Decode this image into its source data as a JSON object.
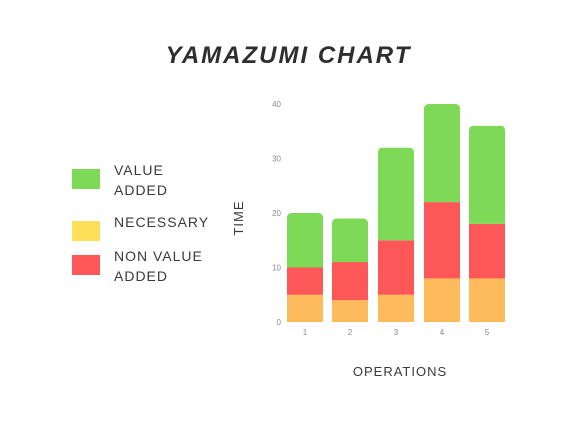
{
  "chart_data": {
    "type": "bar",
    "stacked": true,
    "title": "YAMAZUMI CHART",
    "xlabel": "OPERATIONS",
    "ylabel": "TIME",
    "categories": [
      "1",
      "2",
      "3",
      "4",
      "5"
    ],
    "yticks": [
      "0",
      "10",
      "20",
      "30",
      "40"
    ],
    "ylim": [
      0,
      40
    ],
    "series": [
      {
        "name": "NECESSARY",
        "color": "#fdbb5c",
        "values": [
          5,
          4,
          5,
          8,
          8
        ]
      },
      {
        "name": "NON VALUE ADDED",
        "color": "#fe5757",
        "values": [
          5,
          7,
          10,
          14,
          10
        ]
      },
      {
        "name": "VALUE ADDED",
        "color": "#7ed957",
        "values": [
          10,
          8,
          17,
          18,
          18
        ]
      }
    ],
    "grid": false,
    "legend_position": "left"
  },
  "legend": [
    {
      "label_line1": "VALUE",
      "label_line2": "ADDED",
      "color": "#7ed957"
    },
    {
      "label_line1": "NECESSARY",
      "label_line2": "",
      "color": "#ffde59"
    },
    {
      "label_line1": "NON VALUE",
      "label_line2": "ADDED",
      "color": "#fe5757"
    }
  ]
}
